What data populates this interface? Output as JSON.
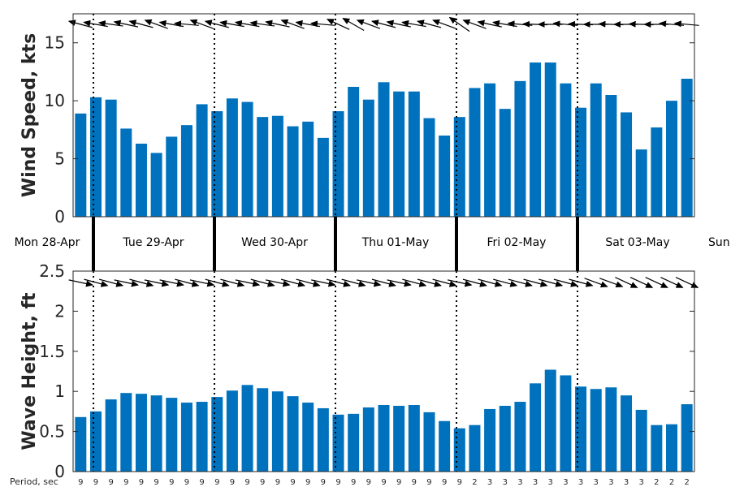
{
  "chart_data": [
    {
      "type": "bar",
      "panel": "wind",
      "ylabel": "Wind Speed, kts",
      "ylim": [
        0,
        17.5
      ],
      "yticks": [
        0,
        5,
        10,
        15
      ],
      "grid": false,
      "color": "#0072bd",
      "values": [
        8.9,
        10.3,
        10.1,
        7.6,
        6.3,
        5.5,
        6.9,
        7.9,
        9.7,
        9.1,
        10.2,
        9.9,
        8.6,
        8.7,
        7.8,
        8.2,
        6.8,
        9.1,
        11.2,
        10.1,
        11.6,
        10.8,
        10.8,
        8.5,
        7.0,
        8.6,
        11.1,
        11.5,
        9.3,
        11.7,
        13.3,
        13.3,
        11.5,
        9.4,
        11.5,
        10.5,
        9.0,
        5.8,
        7.7,
        10.0,
        11.9
      ],
      "direction_arrows_deg": [
        165,
        170,
        172,
        168,
        165,
        160,
        170,
        175,
        160,
        165,
        170,
        170,
        172,
        168,
        160,
        170,
        175,
        155,
        150,
        160,
        165,
        168,
        170,
        165,
        160,
        145,
        160,
        168,
        170,
        175,
        178,
        180,
        175,
        178,
        180,
        178,
        180,
        178,
        180,
        175,
        175
      ]
    },
    {
      "type": "bar",
      "panel": "wave",
      "ylabel": "Wave Height, ft",
      "ylim": [
        0,
        2.5
      ],
      "yticks": [
        "0",
        "0.5",
        "1",
        "1.5",
        "2",
        "2.5"
      ],
      "grid": false,
      "color": "#0072bd",
      "values": [
        0.68,
        0.75,
        0.9,
        0.98,
        0.97,
        0.95,
        0.92,
        0.86,
        0.87,
        0.93,
        1.01,
        1.08,
        1.04,
        1.0,
        0.94,
        0.86,
        0.79,
        0.71,
        0.72,
        0.8,
        0.83,
        0.82,
        0.83,
        0.74,
        0.63,
        0.54,
        0.58,
        0.78,
        0.82,
        0.87,
        1.1,
        1.27,
        1.2,
        1.06,
        1.03,
        1.05,
        0.95,
        0.77,
        0.58,
        0.59,
        0.84
      ],
      "direction_arrows_deg": [
        -12,
        -15,
        -15,
        -12,
        -15,
        -12,
        -12,
        -15,
        -12,
        -15,
        -15,
        -12,
        -15,
        -12,
        -15,
        -15,
        -12,
        -15,
        -15,
        -12,
        -15,
        -12,
        -15,
        -15,
        -15,
        -12,
        -15,
        -15,
        -15,
        -15,
        -15,
        -15,
        -15,
        -15,
        -20,
        -20,
        -25,
        -25,
        -25,
        -25,
        -25
      ]
    }
  ],
  "days": [
    "Mon 28-Apr",
    "Tue 29-Apr",
    "Wed 30-Apr",
    "Thu 01-May",
    "Fri 02-May",
    "Sat 03-May",
    "Sun"
  ],
  "period": {
    "label": "Period, sec",
    "values": [
      "9",
      "9",
      "9",
      "9",
      "9",
      "9",
      "9",
      "9",
      "9",
      "9",
      "9",
      "9",
      "9",
      "9",
      "9",
      "9",
      "9",
      "9",
      "9",
      "9",
      "9",
      "9",
      "9",
      "9",
      "9",
      "9",
      "2",
      "3",
      "3",
      "3",
      "3",
      "3",
      "3",
      "3",
      "3",
      "3",
      "3",
      "3",
      "2",
      "2",
      "2"
    ]
  }
}
